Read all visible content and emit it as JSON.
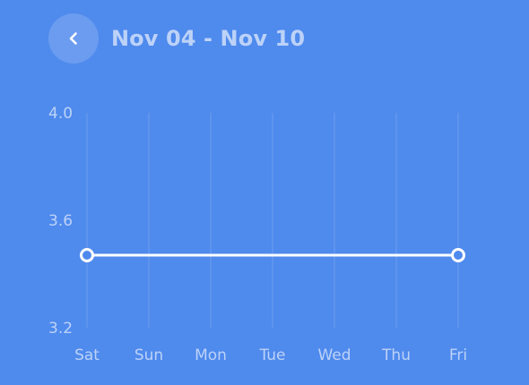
{
  "header": {
    "back_icon": "chevron-left-icon",
    "date_range": "Nov 04 - Nov 10"
  },
  "colors": {
    "background": "#4f8aed",
    "line": "#ffffff",
    "muted_text": "#ffffff9e"
  },
  "chart_data": {
    "type": "line",
    "title": "",
    "xlabel": "",
    "ylabel": "",
    "categories": [
      "Sat",
      "Sun",
      "Mon",
      "Tue",
      "Wed",
      "Thu",
      "Fri"
    ],
    "ylim": [
      3.2,
      4.0
    ],
    "yticks": [
      "4.0",
      "3.6",
      "3.2"
    ],
    "grid": true,
    "series": [
      {
        "values": [
          3.47,
          null,
          null,
          null,
          null,
          null,
          3.47
        ],
        "markers": "hollow-circle"
      }
    ]
  }
}
